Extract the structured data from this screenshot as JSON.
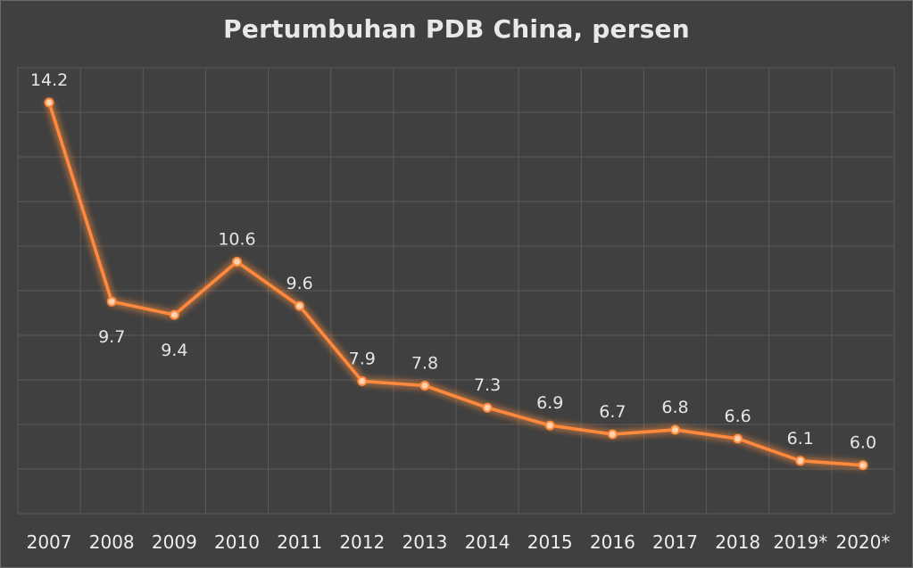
{
  "chart_data": {
    "type": "line",
    "title": "Pertumbuhan PDB China, persen",
    "xlabel": "",
    "ylabel": "",
    "categories": [
      "2007",
      "2008",
      "2009",
      "2010",
      "2011",
      "2012",
      "2013",
      "2014",
      "2015",
      "2016",
      "2017",
      "2018",
      "2019*",
      "2020*"
    ],
    "values": [
      14.2,
      9.7,
      9.4,
      10.6,
      9.6,
      7.9,
      7.8,
      7.3,
      6.9,
      6.7,
      6.8,
      6.6,
      6.1,
      6.0
    ],
    "data_labels": [
      "14.2",
      "9.7",
      "9.4",
      "10.6",
      "9.6",
      "7.9",
      "7.8",
      "7.3",
      "6.9",
      "6.7",
      "6.8",
      "6.6",
      "6.1",
      "6.0"
    ],
    "label_position": [
      "above",
      "below",
      "below",
      "above",
      "above",
      "above",
      "above",
      "above",
      "above",
      "above",
      "above",
      "above",
      "above",
      "above"
    ],
    "grid": true,
    "legend": "none",
    "colors": {
      "line": "#ff8a3d",
      "glow": "#ff8a3d",
      "marker_fill": "#ffd2b0",
      "background": "#404040",
      "text": "#e8e8e8",
      "grid": "#5a5a5a"
    }
  }
}
